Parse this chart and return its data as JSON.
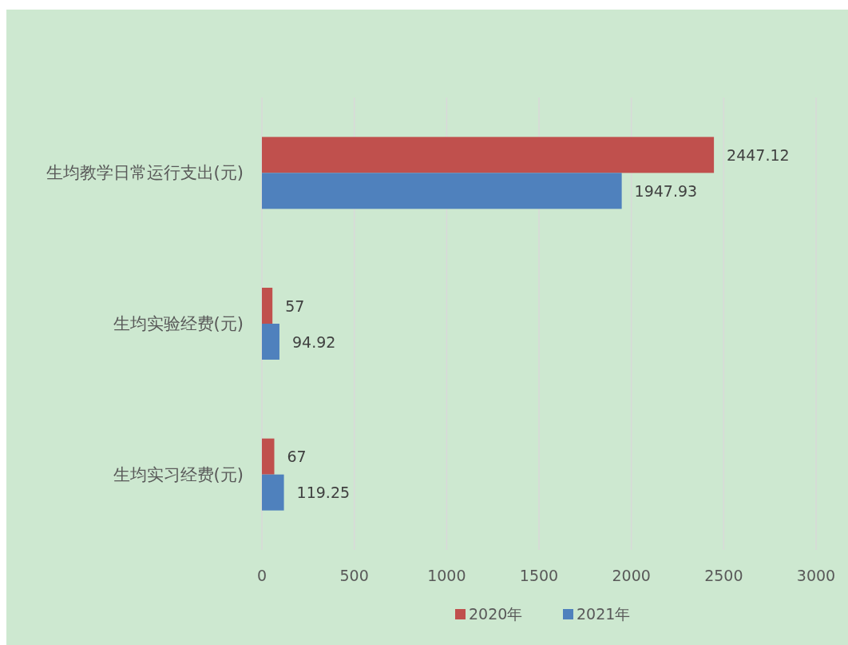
{
  "chart_data": {
    "type": "bar",
    "orientation": "horizontal",
    "categories": [
      "生均教学日常运行支出(元)",
      "生均实验经费(元)",
      "生均实习经费(元)"
    ],
    "series": [
      {
        "name": "2020年",
        "color": "#c0504d",
        "values": [
          2447.12,
          57,
          67
        ]
      },
      {
        "name": "2021年",
        "color": "#4f81bd",
        "values": [
          1947.93,
          94.92,
          119.25
        ]
      }
    ],
    "xlim": [
      0,
      3000
    ],
    "xticks": [
      0,
      500,
      1000,
      1500,
      2000,
      2500,
      3000
    ],
    "grid": "x",
    "legend": "bottom",
    "data_labels": true
  }
}
